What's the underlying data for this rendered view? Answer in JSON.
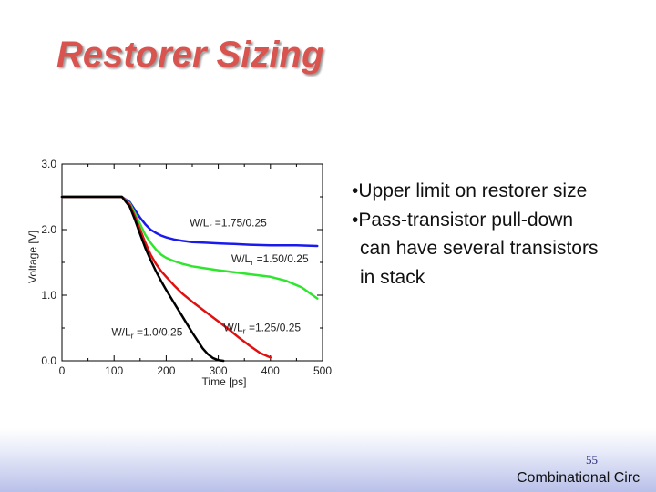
{
  "slide": {
    "title": "Restorer Sizing",
    "bullets": [
      "•Upper limit on restorer size",
      "•Pass-transistor pull-down",
      "can have several transistors",
      "in stack"
    ],
    "page_number": "55",
    "footer": "Combinational Circ"
  },
  "colors": {
    "title": "#d9534f",
    "blue": "#1a1aee",
    "green": "#2ee62e",
    "red": "#e01010",
    "black": "#000000"
  },
  "chart_data": {
    "type": "line",
    "xlabel": "Time [ps]",
    "ylabel": "Voltage [V]",
    "xlim": [
      0,
      500
    ],
    "ylim": [
      0,
      3.0
    ],
    "xticks": [
      "0",
      "100",
      "200",
      "300",
      "400",
      "500"
    ],
    "yticks": [
      "0.0",
      "1.0",
      "2.0",
      "3.0"
    ],
    "series": [
      {
        "name": "W/Lr =1.75/0.25",
        "label_prefix": "W/L",
        "label_sub": "r",
        "label_suffix": " =1.75/0.25",
        "color": "#1a1aee",
        "x": [
          0,
          115,
          130,
          140,
          150,
          160,
          170,
          180,
          190,
          200,
          215,
          230,
          250,
          275,
          300,
          330,
          360,
          400,
          450,
          490
        ],
        "y": [
          2.5,
          2.5,
          2.42,
          2.3,
          2.18,
          2.08,
          2.0,
          1.95,
          1.91,
          1.88,
          1.85,
          1.83,
          1.81,
          1.8,
          1.79,
          1.78,
          1.77,
          1.76,
          1.76,
          1.75
        ]
      },
      {
        "name": "W/Lr =1.50/0.25",
        "label_prefix": "W/L",
        "label_sub": "r",
        "label_suffix": " =1.50/0.25",
        "color": "#2ee62e",
        "x": [
          0,
          115,
          130,
          140,
          150,
          160,
          170,
          180,
          190,
          200,
          215,
          230,
          250,
          275,
          300,
          330,
          360,
          400,
          430,
          460,
          490
        ],
        "y": [
          2.5,
          2.5,
          2.4,
          2.25,
          2.08,
          1.92,
          1.8,
          1.7,
          1.62,
          1.57,
          1.52,
          1.48,
          1.44,
          1.41,
          1.38,
          1.35,
          1.32,
          1.28,
          1.22,
          1.12,
          0.95
        ]
      },
      {
        "name": "W/Lr =1.25/0.25",
        "label_prefix": "W/L",
        "label_sub": "r",
        "label_suffix": " =1.25/0.25",
        "color": "#e01010",
        "x": [
          0,
          115,
          130,
          140,
          150,
          160,
          170,
          180,
          190,
          200,
          215,
          230,
          250,
          275,
          300,
          320,
          340,
          360,
          380,
          400
        ],
        "y": [
          2.5,
          2.5,
          2.38,
          2.2,
          2.0,
          1.8,
          1.62,
          1.48,
          1.37,
          1.28,
          1.15,
          1.03,
          0.9,
          0.75,
          0.6,
          0.48,
          0.35,
          0.23,
          0.12,
          0.05
        ]
      },
      {
        "name": "W/Lr =1.0/0.25",
        "label_prefix": "W/L",
        "label_sub": "r",
        "label_suffix": " =1.0/0.25",
        "color": "#000000",
        "x": [
          0,
          115,
          130,
          140,
          150,
          160,
          170,
          180,
          190,
          200,
          210,
          220,
          230,
          240,
          250,
          260,
          270,
          280,
          290,
          300,
          310
        ],
        "y": [
          2.5,
          2.5,
          2.35,
          2.15,
          1.93,
          1.72,
          1.54,
          1.37,
          1.22,
          1.08,
          0.95,
          0.82,
          0.69,
          0.56,
          0.43,
          0.31,
          0.19,
          0.1,
          0.04,
          0.01,
          0.0
        ]
      }
    ],
    "annotations": [
      {
        "series": 0,
        "at_x": 245,
        "at_y": 2.05
      },
      {
        "series": 1,
        "at_x": 325,
        "at_y": 1.5
      },
      {
        "series": 2,
        "at_x": 310,
        "at_y": 0.45
      },
      {
        "series": 3,
        "at_x": 95,
        "at_y": 0.38
      }
    ]
  }
}
